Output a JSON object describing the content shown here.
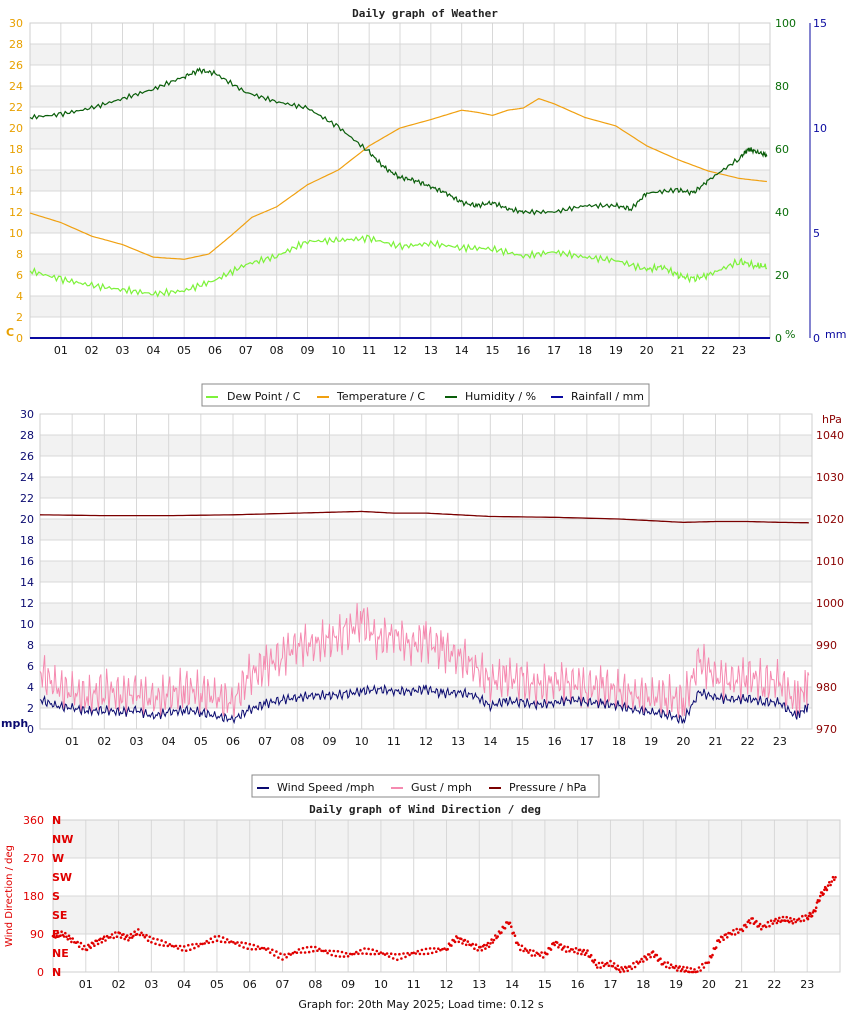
{
  "page": {
    "footer": "Graph for: 20th May 2025; Load time: 0.12 s"
  },
  "colors": {
    "dew": "#7df23a",
    "temp": "#f0a010",
    "humidity": "#0a5e0a",
    "rain": "#0a0aa0",
    "wind": "#0a0a70",
    "gust": "#f58ab0",
    "pressure": "#7a0000",
    "dir": "#e00000",
    "band": "#f2f2f2",
    "grid": "#d8d8d8"
  },
  "hour_ticks": [
    "01",
    "02",
    "03",
    "04",
    "05",
    "06",
    "07",
    "08",
    "09",
    "10",
    "11",
    "12",
    "13",
    "14",
    "15",
    "16",
    "17",
    "18",
    "19",
    "20",
    "21",
    "22",
    "23"
  ],
  "chart_data": [
    {
      "type": "line",
      "title": "Daily graph of Weather",
      "left_axis": {
        "unit": "C",
        "ylim": [
          0,
          30
        ],
        "ticks": [
          0,
          2,
          4,
          6,
          8,
          10,
          12,
          14,
          16,
          18,
          20,
          22,
          24,
          26,
          28,
          30
        ]
      },
      "right_axis_1": {
        "unit": "%",
        "ylim": [
          0,
          100
        ],
        "ticks": [
          0,
          20,
          40,
          60,
          80,
          100
        ]
      },
      "right_axis_2": {
        "unit": "mm",
        "ylim": [
          0,
          15
        ],
        "ticks": [
          0,
          5,
          10,
          15
        ]
      },
      "xlim": [
        0,
        24
      ],
      "legend": [
        "Dew Point / C",
        "Temperature / C",
        "Humidity / %",
        "Rainfall / mm"
      ],
      "series": [
        {
          "name": "Temperature / C",
          "axis": "left",
          "x": [
            0,
            1,
            2,
            3,
            4,
            5,
            5.8,
            6.5,
            7.2,
            8,
            9,
            10,
            11,
            12,
            13,
            14,
            14.5,
            15,
            15.5,
            16,
            16.5,
            17,
            18,
            19,
            20,
            21,
            22,
            23,
            23.9
          ],
          "y": [
            11.9,
            11,
            9.7,
            8.9,
            7.7,
            7.5,
            8,
            9.7,
            11.5,
            12.5,
            14.6,
            16,
            18.3,
            20,
            20.8,
            21.7,
            21.5,
            21.2,
            21.7,
            21.9,
            22.8,
            22.3,
            21,
            20.2,
            18.3,
            17,
            15.9,
            15.2,
            14.9
          ]
        },
        {
          "name": "Dew Point / C",
          "axis": "left",
          "x": [
            0,
            1,
            2,
            3,
            4,
            5,
            6,
            7,
            8,
            9,
            10,
            11,
            12,
            13,
            14,
            15,
            16,
            17,
            18,
            19,
            20,
            20.5,
            21,
            21.5,
            22,
            23,
            23.5,
            23.9
          ],
          "y": [
            6.4,
            5.6,
            5,
            4.6,
            4.2,
            4.5,
            5.5,
            7,
            7.8,
            9.2,
            9.3,
            9.5,
            8.7,
            9,
            8.6,
            8.5,
            7.8,
            8.2,
            7.7,
            7.4,
            6.5,
            6.8,
            6,
            5.6,
            6,
            7.3,
            6.9,
            6.8
          ]
        },
        {
          "name": "Humidity / %",
          "axis": "right_1",
          "x": [
            0,
            1,
            2,
            3,
            4,
            5,
            5.5,
            6,
            7,
            8,
            9,
            10,
            11,
            11.5,
            12,
            12.5,
            13,
            13.5,
            14,
            14.5,
            15,
            15.5,
            16,
            17,
            18,
            19,
            19.5,
            20,
            21,
            21.5,
            22,
            23,
            23.3,
            23.6,
            23.9
          ],
          "y": [
            70,
            71,
            73,
            76,
            79,
            83,
            85,
            84,
            78,
            75,
            73,
            67,
            59,
            54,
            51,
            50,
            48,
            46,
            43,
            42,
            43,
            41,
            40,
            40,
            42,
            42,
            41,
            46,
            47,
            46,
            50,
            57,
            60,
            59,
            58
          ]
        },
        {
          "name": "Rainfall / mm",
          "axis": "right_2",
          "x": [
            0,
            24
          ],
          "y": [
            0,
            0
          ]
        }
      ]
    },
    {
      "type": "line",
      "title": "",
      "left_axis": {
        "unit": "mph",
        "ylim": [
          0,
          30
        ],
        "ticks": [
          0,
          2,
          4,
          6,
          8,
          10,
          12,
          14,
          16,
          18,
          20,
          22,
          24,
          26,
          28,
          30
        ]
      },
      "right_axis": {
        "unit": "hPa",
        "ylim": [
          970,
          1045
        ],
        "ticks": [
          970,
          980,
          990,
          1000,
          1010,
          1020,
          1030,
          1040
        ]
      },
      "xlim": [
        0,
        24
      ],
      "legend": [
        "Wind Speed /mph",
        "Gust / mph",
        "Pressure / hPa"
      ],
      "series": [
        {
          "name": "Wind Speed /mph",
          "axis": "left",
          "x": [
            0,
            0.5,
            1,
            1.5,
            2,
            2.5,
            3,
            3.5,
            4,
            4.5,
            5,
            5.5,
            6,
            6.5,
            7,
            7.5,
            8,
            8.5,
            9,
            9.5,
            10,
            10.5,
            11,
            11.5,
            12,
            12.5,
            13,
            13.5,
            14,
            14.5,
            15,
            15.5,
            16,
            16.5,
            17,
            17.5,
            18,
            18.5,
            19,
            19.5,
            20,
            20.5,
            21,
            21.5,
            22,
            22.5,
            23,
            23.5,
            23.9
          ],
          "y": [
            2.8,
            2.2,
            2,
            1.7,
            1.8,
            1.6,
            1.8,
            1.2,
            1.6,
            1.8,
            1.6,
            1.2,
            0.9,
            1.8,
            2.4,
            2.8,
            3,
            3.2,
            3.2,
            3.3,
            3.6,
            3.8,
            3.6,
            3.6,
            3.8,
            3.4,
            3.5,
            3.2,
            2.2,
            2.7,
            2.5,
            2.3,
            2.5,
            2.8,
            2.6,
            2.4,
            2.2,
            1.8,
            1.6,
            1.4,
            0.8,
            3.5,
            3,
            2.8,
            2.9,
            2.6,
            2.5,
            1.2,
            2.2
          ]
        },
        {
          "name": "Gust / mph",
          "axis": "left",
          "x": [
            0,
            0.5,
            1,
            1.5,
            2,
            2.5,
            3,
            3.5,
            4,
            4.5,
            5,
            5.5,
            6,
            6.5,
            7,
            7.5,
            8,
            8.5,
            9,
            9.5,
            10,
            10.5,
            11,
            11.5,
            12,
            12.5,
            13,
            13.5,
            14,
            14.5,
            15,
            15.5,
            16,
            16.5,
            17,
            17.5,
            18,
            18.5,
            19,
            19.5,
            20,
            20.5,
            21,
            21.5,
            22,
            22.5,
            23,
            23.5,
            23.9
          ],
          "y": [
            5.5,
            4,
            3.5,
            3,
            3.8,
            3.2,
            3.5,
            2.8,
            3.2,
            3.8,
            3.5,
            3,
            2.5,
            5,
            6,
            7,
            8,
            8,
            8.5,
            9,
            10.5,
            8.5,
            9,
            8,
            8.5,
            7.5,
            7,
            6,
            4.5,
            5,
            4.5,
            4,
            4.5,
            4.5,
            4,
            4,
            3.5,
            3.2,
            3,
            3.2,
            2.5,
            6.5,
            5,
            4.5,
            5,
            4.5,
            4.5,
            2.5,
            4.5
          ]
        },
        {
          "name": "Pressure / hPa",
          "axis": "right",
          "x": [
            0,
            2,
            4,
            6,
            8,
            9,
            10,
            11,
            12,
            13,
            14,
            16,
            18,
            19,
            20,
            21,
            22,
            23,
            23.9
          ],
          "y": [
            1021,
            1020.8,
            1020.8,
            1021,
            1021.4,
            1021.6,
            1021.8,
            1021.4,
            1021.4,
            1021,
            1020.6,
            1020.4,
            1020,
            1019.6,
            1019.2,
            1019.4,
            1019.4,
            1019.2,
            1019.1
          ]
        }
      ]
    },
    {
      "type": "scatter",
      "title": "Daily graph of Wind Direction / deg",
      "left_axis": {
        "label": "Wind Direction / deg",
        "ylim": [
          0,
          360
        ],
        "ticks": [
          0,
          90,
          180,
          270,
          360
        ]
      },
      "compass_labels": [
        "N",
        "NE",
        "E",
        "SE",
        "S",
        "SW",
        "W",
        "NW",
        "N"
      ],
      "xlim": [
        0,
        24
      ],
      "series": [
        {
          "name": "Wind Direction / deg",
          "x": [
            0,
            0.3,
            0.6,
            1,
            1.3,
            1.6,
            2,
            2.3,
            2.6,
            3,
            3.5,
            4,
            4.5,
            5,
            5.5,
            6,
            6.5,
            7,
            7.5,
            8,
            8.5,
            9,
            9.5,
            10,
            10.5,
            11,
            11.5,
            12,
            12.3,
            12.6,
            13,
            13.3,
            13.6,
            13.9,
            14.2,
            14.6,
            15,
            15.3,
            15.6,
            16,
            16.3,
            16.6,
            17,
            17.3,
            17.6,
            18,
            18.3,
            18.6,
            19,
            19.3,
            19.6,
            20,
            20.3,
            20.6,
            21,
            21.3,
            21.6,
            22,
            22.3,
            22.6,
            23,
            23.2,
            23.4,
            23.6,
            23.9
          ],
          "y": [
            85,
            90,
            75,
            55,
            70,
            80,
            90,
            80,
            95,
            75,
            65,
            55,
            65,
            80,
            70,
            60,
            55,
            35,
            50,
            55,
            45,
            40,
            50,
            45,
            35,
            45,
            50,
            55,
            80,
            70,
            55,
            65,
            90,
            120,
            60,
            45,
            40,
            70,
            55,
            50,
            45,
            15,
            20,
            5,
            10,
            30,
            45,
            20,
            10,
            5,
            0,
            25,
            75,
            90,
            100,
            125,
            105,
            120,
            125,
            120,
            130,
            140,
            180,
            200,
            230
          ]
        }
      ]
    }
  ]
}
